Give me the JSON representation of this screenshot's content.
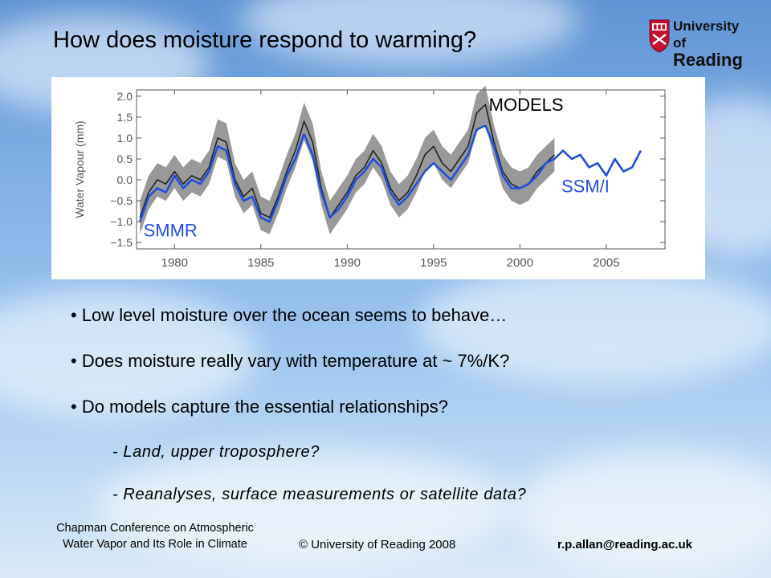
{
  "slide": {
    "title": "How does moisture respond to warming?",
    "logo": {
      "line1": "University of",
      "line2": "Reading"
    },
    "bullets": [
      "• Low level moisture over the ocean seems to behave…",
      "• Does moisture really vary  with temperature at ~ 7%/K?",
      "• Do models capture the essential relationships?"
    ],
    "sub_bullets": [
      "- Land, upper troposphere?",
      "- Reanalyses, surface measurements or satellite data?"
    ],
    "footer": {
      "conference_line1": "Chapman Conference on Atmospheric",
      "conference_line2": "Water Vapor and Its Role in Climate",
      "copyright": "© University of Reading 2008",
      "email": "r.p.allan@reading.ac.uk"
    }
  },
  "chart_data": {
    "type": "line",
    "title": "",
    "xlabel": "",
    "ylabel": "Water Vapour (mm)",
    "xlim": [
      1977.8,
      2008.4
    ],
    "ylim": [
      -1.65,
      2.15
    ],
    "xticks": [
      1980,
      1985,
      1990,
      1995,
      2000,
      2005
    ],
    "yticks": [
      2.0,
      1.5,
      1.0,
      0.5,
      0.0,
      -0.5,
      -1.0,
      -1.5
    ],
    "ytick_labels": [
      "2.0",
      "1.5",
      "1.0",
      "0.5",
      "0.0",
      "−0.5",
      "−1.0",
      "−1.5"
    ],
    "grid": false,
    "annotations": [
      {
        "text": "MODELS",
        "x": 1998.2,
        "y": 1.65,
        "color": "#000000"
      },
      {
        "text": "SSM/I",
        "x": 2002.4,
        "y": -0.3,
        "color": "#1f4fdc"
      },
      {
        "text": "SMMR",
        "x": 1978.2,
        "y": -1.35,
        "color": "#1f4fdc"
      }
    ],
    "series": [
      {
        "label": "MODELS",
        "color": "#222222",
        "band_color": "#777777",
        "x": [
          1978.0,
          1978.5,
          1979.0,
          1979.5,
          1980.0,
          1980.5,
          1981.0,
          1981.5,
          1982.0,
          1982.5,
          1983.0,
          1983.5,
          1984.0,
          1984.5,
          1985.0,
          1985.5,
          1986.0,
          1986.5,
          1987.0,
          1987.5,
          1988.0,
          1988.5,
          1989.0,
          1989.5,
          1990.0,
          1990.5,
          1991.0,
          1991.5,
          1992.0,
          1992.5,
          1993.0,
          1993.5,
          1994.0,
          1994.5,
          1995.0,
          1995.5,
          1996.0,
          1996.5,
          1997.0,
          1997.5,
          1998.0,
          1998.5,
          1999.0,
          1999.5,
          2000.0,
          2000.5,
          2001.0,
          2001.5,
          2002.0
        ],
        "y": [
          -0.9,
          -0.3,
          0.0,
          -0.1,
          0.2,
          -0.1,
          0.1,
          0.0,
          0.3,
          1.0,
          0.9,
          0.0,
          -0.4,
          -0.2,
          -0.8,
          -0.9,
          -0.4,
          0.2,
          0.7,
          1.4,
          0.9,
          -0.2,
          -0.9,
          -0.6,
          -0.3,
          0.1,
          0.3,
          0.7,
          0.4,
          -0.2,
          -0.5,
          -0.3,
          0.1,
          0.6,
          0.8,
          0.4,
          0.2,
          0.5,
          0.8,
          1.6,
          1.8,
          0.9,
          0.2,
          -0.1,
          -0.2,
          -0.1,
          0.2,
          0.4,
          0.6
        ],
        "spread": [
          0.4,
          0.4,
          0.4,
          0.4,
          0.4,
          0.4,
          0.4,
          0.4,
          0.4,
          0.45,
          0.45,
          0.4,
          0.4,
          0.4,
          0.4,
          0.4,
          0.4,
          0.4,
          0.4,
          0.45,
          0.45,
          0.4,
          0.4,
          0.4,
          0.4,
          0.4,
          0.4,
          0.4,
          0.4,
          0.4,
          0.4,
          0.4,
          0.4,
          0.4,
          0.4,
          0.4,
          0.4,
          0.4,
          0.4,
          0.45,
          0.45,
          0.4,
          0.4,
          0.4,
          0.4,
          0.4,
          0.4,
          0.4,
          0.4
        ]
      },
      {
        "label": "SMMR",
        "color": "#1f4fdc",
        "x": [
          1978.0,
          1978.5,
          1979.0,
          1979.5,
          1980.0,
          1980.5,
          1981.0,
          1981.5,
          1982.0,
          1982.5,
          1983.0,
          1983.5,
          1984.0,
          1984.5,
          1985.0,
          1985.5,
          1986.0,
          1986.5,
          1987.0,
          1987.5
        ],
        "y": [
          -1.0,
          -0.4,
          -0.2,
          -0.3,
          0.1,
          -0.2,
          0.0,
          -0.1,
          0.2,
          0.8,
          0.7,
          -0.1,
          -0.5,
          -0.4,
          -0.9,
          -1.0,
          -0.5,
          0.1,
          0.5,
          1.1
        ]
      },
      {
        "label": "SSM/I",
        "color": "#1f4fdc",
        "x": [
          1987.5,
          1988.0,
          1988.5,
          1989.0,
          1989.5,
          1990.0,
          1990.5,
          1991.0,
          1991.5,
          1992.0,
          1992.5,
          1993.0,
          1993.5,
          1994.0,
          1994.5,
          1995.0,
          1995.5,
          1996.0,
          1996.5,
          1997.0,
          1997.5,
          1998.0,
          1998.5,
          1999.0,
          1999.5,
          2000.0,
          2000.5,
          2001.0,
          2001.5,
          2002.0,
          2002.5,
          2003.0,
          2003.5,
          2004.0,
          2004.5,
          2005.0,
          2005.5,
          2006.0,
          2006.5,
          2007.0
        ],
        "y": [
          1.1,
          0.6,
          -0.3,
          -0.9,
          -0.7,
          -0.4,
          0.0,
          0.2,
          0.5,
          0.3,
          -0.3,
          -0.6,
          -0.4,
          -0.1,
          0.2,
          0.4,
          0.2,
          0.0,
          0.3,
          0.6,
          1.2,
          1.3,
          0.8,
          0.1,
          -0.2,
          -0.2,
          -0.1,
          0.1,
          0.4,
          0.5,
          0.7,
          0.5,
          0.6,
          0.3,
          0.4,
          0.1,
          0.5,
          0.2,
          0.3,
          0.7
        ]
      }
    ]
  }
}
